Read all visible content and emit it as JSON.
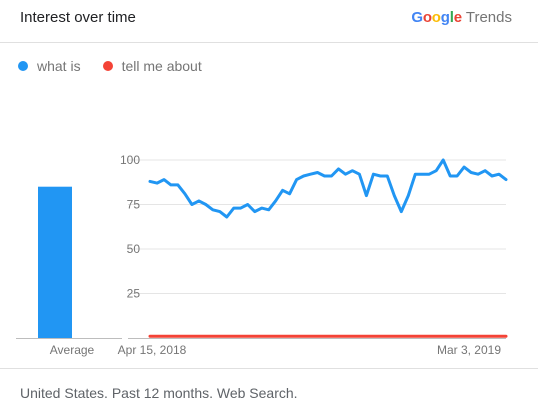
{
  "header": {
    "title": "Interest over time",
    "brand_letters": [
      {
        "char": "G",
        "color": "#4285F4"
      },
      {
        "char": "o",
        "color": "#EA4335"
      },
      {
        "char": "o",
        "color": "#FBBC05"
      },
      {
        "char": "g",
        "color": "#4285F4"
      },
      {
        "char": "l",
        "color": "#34A853"
      },
      {
        "char": "e",
        "color": "#EA4335"
      }
    ],
    "brand_product": "Trends"
  },
  "legend": [
    {
      "label": "what is",
      "color": "#2196F3"
    },
    {
      "label": "tell me about",
      "color": "#F44336"
    }
  ],
  "footer": {
    "text": "United States. Past 12 months. Web Search."
  },
  "chart_data": {
    "type": "line",
    "y_ticks": [
      100,
      75,
      50,
      25
    ],
    "ylim": [
      0,
      100
    ],
    "x_tick_labels": [
      "Apr 15, 2018",
      "Mar 3, 2019"
    ],
    "grid": true,
    "average": {
      "label": "Average",
      "series": "what is",
      "value": 85
    },
    "series": [
      {
        "name": "what is",
        "color": "#2196F3",
        "values": [
          88,
          87,
          89,
          86,
          86,
          81,
          75,
          77,
          75,
          72,
          71,
          68,
          73,
          73,
          75,
          71,
          73,
          72,
          77,
          83,
          81,
          89,
          91,
          92,
          93,
          91,
          91,
          95,
          92,
          94,
          92,
          80,
          92,
          91,
          91,
          80,
          71,
          80,
          92,
          92,
          92,
          94,
          100,
          91,
          91,
          96,
          93,
          92,
          94,
          91,
          92,
          89
        ]
      },
      {
        "name": "tell me about",
        "color": "#F44336",
        "values": [
          1,
          1,
          1,
          1,
          1,
          1,
          1,
          1,
          1,
          1,
          1,
          1,
          1,
          1,
          1,
          1,
          1,
          1,
          1,
          1,
          1,
          1,
          1,
          1,
          1,
          1,
          1,
          1,
          1,
          1,
          1,
          1,
          1,
          1,
          1,
          1,
          1,
          1,
          1,
          1,
          1,
          1,
          1,
          1,
          1,
          1,
          1,
          1,
          1,
          1,
          1,
          1
        ]
      }
    ]
  }
}
